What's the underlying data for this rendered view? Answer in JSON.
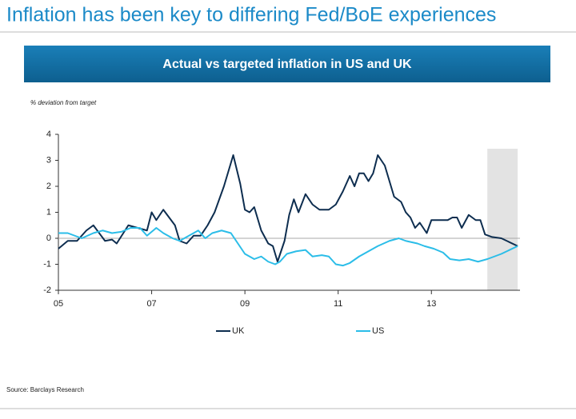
{
  "chart_data": {
    "type": "line",
    "page_title": "Inflation has been key to differing Fed/BoE experiences",
    "title": "Actual vs targeted inflation in US and UK",
    "y_label": "% deviation from target",
    "source": "Source: Barclays Research",
    "xlim": [
      2005,
      2014.9
    ],
    "xticks": [
      {
        "value": 2005,
        "label": "05"
      },
      {
        "value": 2007,
        "label": "07"
      },
      {
        "value": 2009,
        "label": "09"
      },
      {
        "value": 2011,
        "label": "11"
      },
      {
        "value": 2013,
        "label": "13"
      }
    ],
    "ylim": [
      -2,
      4
    ],
    "yticks": [
      -2,
      -1,
      0,
      1,
      2,
      3,
      4
    ],
    "forecast_span": [
      2014.2,
      2014.85
    ],
    "series": [
      {
        "name": "UK",
        "color": "#0d2d4f",
        "x": [
          2005.0,
          2005.2,
          2005.4,
          2005.6,
          2005.75,
          2006.0,
          2006.15,
          2006.25,
          2006.5,
          2006.7,
          2006.9,
          2007.0,
          2007.1,
          2007.25,
          2007.5,
          2007.6,
          2007.75,
          2007.9,
          2008.05,
          2008.2,
          2008.35,
          2008.55,
          2008.75,
          2008.9,
          2009.0,
          2009.1,
          2009.2,
          2009.35,
          2009.5,
          2009.6,
          2009.7,
          2009.85,
          2009.95,
          2010.05,
          2010.15,
          2010.3,
          2010.45,
          2010.6,
          2010.8,
          2010.95,
          2011.1,
          2011.25,
          2011.35,
          2011.45,
          2011.55,
          2011.65,
          2011.75,
          2011.85,
          2012.0,
          2012.2,
          2012.35,
          2012.45,
          2012.55,
          2012.65,
          2012.75,
          2012.9,
          2013.0,
          2013.2,
          2013.35,
          2013.45,
          2013.55,
          2013.65,
          2013.8,
          2013.95,
          2014.05,
          2014.15,
          2014.3,
          2014.5,
          2014.85
        ],
        "values": [
          -0.4,
          -0.1,
          -0.1,
          0.3,
          0.5,
          -0.1,
          -0.05,
          -0.2,
          0.5,
          0.4,
          0.3,
          1.0,
          0.7,
          1.1,
          0.5,
          -0.1,
          -0.2,
          0.1,
          0.1,
          0.5,
          1.0,
          2.0,
          3.2,
          2.1,
          1.1,
          1.0,
          1.2,
          0.3,
          -0.2,
          -0.3,
          -0.9,
          -0.1,
          0.9,
          1.5,
          1.0,
          1.7,
          1.3,
          1.1,
          1.1,
          1.3,
          1.8,
          2.4,
          2.0,
          2.5,
          2.5,
          2.2,
          2.5,
          3.2,
          2.8,
          1.6,
          1.4,
          1.0,
          0.8,
          0.4,
          0.6,
          0.2,
          0.7,
          0.7,
          0.7,
          0.8,
          0.8,
          0.4,
          0.9,
          0.7,
          0.7,
          0.15,
          0.05,
          0.0,
          -0.3
        ]
      },
      {
        "name": "US",
        "color": "#2bbde8",
        "x": [
          2005.0,
          2005.2,
          2005.35,
          2005.5,
          2005.75,
          2005.95,
          2006.15,
          2006.35,
          2006.55,
          2006.75,
          2006.9,
          2007.1,
          2007.25,
          2007.45,
          2007.6,
          2007.8,
          2008.0,
          2008.15,
          2008.3,
          2008.5,
          2008.7,
          2008.85,
          2009.0,
          2009.2,
          2009.35,
          2009.5,
          2009.65,
          2009.75,
          2009.9,
          2010.1,
          2010.3,
          2010.45,
          2010.65,
          2010.8,
          2010.95,
          2011.1,
          2011.25,
          2011.45,
          2011.65,
          2011.85,
          2012.1,
          2012.3,
          2012.45,
          2012.7,
          2012.85,
          2013.05,
          2013.25,
          2013.4,
          2013.6,
          2013.8,
          2014.0,
          2014.2,
          2014.5,
          2014.85
        ],
        "values": [
          0.2,
          0.2,
          0.1,
          0.0,
          0.2,
          0.3,
          0.2,
          0.25,
          0.4,
          0.4,
          0.1,
          0.4,
          0.2,
          0.0,
          -0.1,
          0.1,
          0.3,
          0.0,
          0.2,
          0.3,
          0.2,
          -0.2,
          -0.6,
          -0.8,
          -0.7,
          -0.9,
          -1.0,
          -0.9,
          -0.6,
          -0.5,
          -0.45,
          -0.7,
          -0.65,
          -0.7,
          -1.0,
          -1.05,
          -0.95,
          -0.7,
          -0.5,
          -0.3,
          -0.1,
          0.0,
          -0.1,
          -0.2,
          -0.3,
          -0.4,
          -0.55,
          -0.8,
          -0.85,
          -0.8,
          -0.9,
          -0.8,
          -0.6,
          -0.3
        ]
      }
    ]
  }
}
